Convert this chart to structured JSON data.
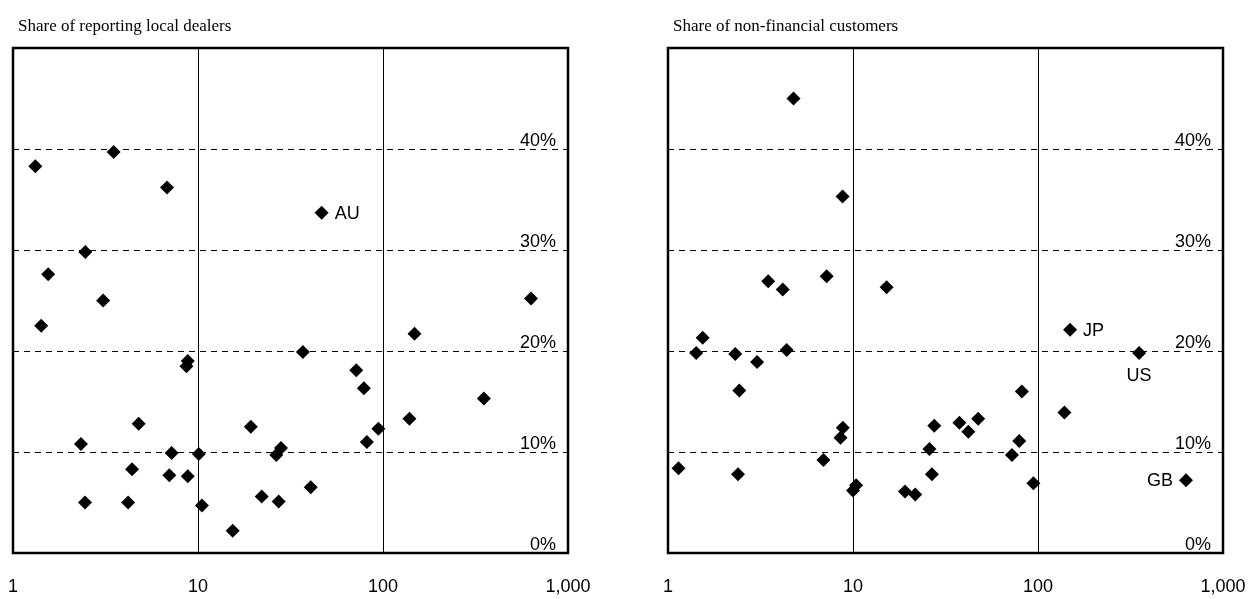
{
  "chart_data": [
    {
      "type": "scatter",
      "title": "Share of reporting local dealers",
      "marker": "diamond",
      "log": "x",
      "grid": true,
      "xlim": [
        1,
        1000
      ],
      "xticks": [
        1,
        10,
        100,
        {
          "value": 1000,
          "label": "1,000"
        }
      ],
      "ylim": [
        0,
        50
      ],
      "yticks": [
        {
          "value": 0,
          "label": "0%"
        },
        {
          "value": 10,
          "label": "10%"
        },
        {
          "value": 20,
          "label": "20%"
        },
        {
          "value": 30,
          "label": "30%"
        },
        {
          "value": 40,
          "label": "40%"
        }
      ],
      "series": [
        {
          "color": "#000000",
          "x": [
            1.32,
            3.5,
            6.8,
            2.46,
            1.55,
            3.07,
            1.42,
            8.8,
            8.66,
            36.9,
            4.78,
            2.33,
            19.3,
            28.1,
            26.5,
            7.2,
            10.1,
            4.4,
            7.0,
            8.8,
            40.7,
            2.45,
            4.19,
            22.1,
            27.3,
            10.5,
            15.4,
            46.6,
            631,
            148,
            71.7,
            78.8,
            351,
            139,
            94.4,
            81.8
          ],
          "values": [
            38.3,
            39.7,
            36.2,
            29.8,
            27.6,
            25.0,
            22.5,
            19.0,
            18.5,
            19.9,
            12.8,
            10.8,
            12.5,
            10.4,
            9.7,
            9.9,
            9.8,
            8.3,
            7.7,
            7.6,
            6.5,
            5.0,
            5.0,
            5.6,
            5.1,
            4.7,
            2.2,
            33.7,
            25.2,
            21.7,
            18.1,
            16.3,
            15.3,
            13.3,
            12.3,
            11.0
          ]
        }
      ],
      "annotations": [
        {
          "text": "AU",
          "x": 46.6,
          "y": 33.7
        }
      ]
    },
    {
      "type": "scatter",
      "title": "Share of non-financial customers",
      "marker": "diamond",
      "log": "x",
      "grid": true,
      "xlim": [
        1,
        1000
      ],
      "xticks": [
        1,
        10,
        100,
        {
          "value": 1000,
          "label": "1,000"
        }
      ],
      "ylim": [
        0,
        50
      ],
      "yticks": [
        {
          "value": 0,
          "label": "0%"
        },
        {
          "value": 10,
          "label": "10%"
        },
        {
          "value": 20,
          "label": "20%"
        },
        {
          "value": 30,
          "label": "30%"
        },
        {
          "value": 40,
          "label": "40%"
        }
      ],
      "series": [
        {
          "color": "#000000",
          "x": [
            4.77,
            8.78,
            7.21,
            3.48,
            4.17,
            15.2,
            1.54,
            1.42,
            2.31,
            4.38,
            3.03,
            2.43,
            8.81,
            8.56,
            1.14,
            2.39,
            6.92,
            10.4,
            10.0,
            19.1,
            21.7,
            27.5,
            25.9,
            26.7,
            37.6,
            42.0,
            47.5,
            81.8,
            79.2,
            72.3,
            94.4,
            139,
            149,
            352,
            631
          ],
          "values": [
            45.0,
            35.3,
            27.4,
            26.9,
            26.1,
            26.3,
            21.3,
            19.8,
            19.7,
            20.1,
            18.9,
            16.1,
            12.4,
            11.4,
            8.4,
            7.8,
            9.2,
            6.7,
            6.2,
            6.1,
            5.8,
            12.6,
            10.3,
            7.8,
            12.9,
            12.0,
            13.3,
            16.0,
            11.1,
            9.7,
            6.9,
            13.9,
            22.1,
            19.8,
            7.2
          ]
        }
      ],
      "annotations": [
        {
          "text": "JP",
          "x": 149,
          "y": 22.1
        },
        {
          "text": "US",
          "x": 352,
          "y": 19.8
        },
        {
          "text": "GB",
          "x": 631,
          "y": 7.2
        }
      ]
    }
  ]
}
